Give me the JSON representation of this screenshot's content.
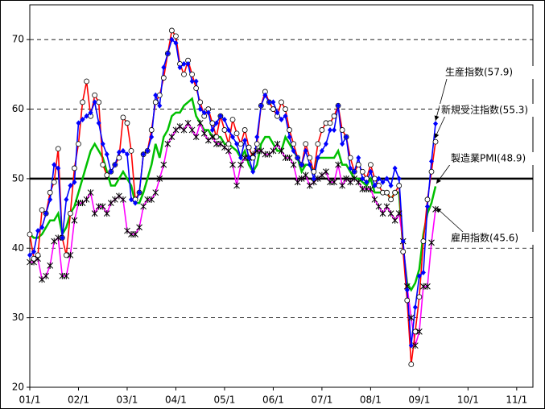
{
  "chart_data": {
    "type": "line",
    "x": [
      0,
      1,
      2,
      3,
      4,
      5,
      6,
      7,
      8,
      9,
      10,
      11,
      12,
      13,
      14,
      15,
      16,
      17,
      18,
      19,
      20,
      21,
      22,
      23,
      24,
      25,
      26,
      27,
      28,
      29,
      30,
      31,
      32,
      33,
      34,
      35,
      36,
      37,
      38,
      39,
      40,
      41,
      42,
      43,
      44,
      45,
      46,
      47,
      48,
      49,
      50,
      51,
      52,
      53,
      54,
      55,
      56,
      57,
      58,
      59,
      60,
      61,
      62,
      63,
      64,
      65,
      66,
      67,
      68,
      69,
      70,
      71,
      72,
      73,
      74,
      75,
      76,
      77,
      78,
      79,
      80,
      81,
      82,
      83,
      84,
      85,
      86,
      87,
      88,
      89,
      90,
      91,
      92,
      93,
      94,
      95,
      96,
      97,
      98,
      99,
      100
    ],
    "xlim": [
      0,
      124
    ],
    "xticks": [
      {
        "value": 0,
        "label": "01/1"
      },
      {
        "value": 12,
        "label": "02/1"
      },
      {
        "value": 24,
        "label": "03/1"
      },
      {
        "value": 36,
        "label": "04/1"
      },
      {
        "value": 48,
        "label": "05/1"
      },
      {
        "value": 60,
        "label": "06/1"
      },
      {
        "value": 72,
        "label": "07/1"
      },
      {
        "value": 84,
        "label": "08/1"
      },
      {
        "value": 96,
        "label": "09/1"
      },
      {
        "value": 108,
        "label": "10/1"
      },
      {
        "value": 120,
        "label": "11/1"
      }
    ],
    "ylim": [
      20,
      75
    ],
    "yticks": [
      20,
      30,
      40,
      50,
      60,
      70
    ],
    "grid": true,
    "reference_line": 50,
    "series": [
      {
        "name": "新規受注指数(55.3)",
        "color": "#ff0000",
        "marker": "circle",
        "values": [
          42,
          38.5,
          39,
          45.5,
          45,
          48,
          49.5,
          54.3,
          41.5,
          39,
          45,
          51.5,
          55,
          61,
          64,
          59,
          62,
          61,
          52,
          50.5,
          51,
          52,
          53,
          58.8,
          58,
          54,
          47,
          48,
          53.5,
          54,
          57,
          61,
          62,
          64.5,
          68,
          71.3,
          70.5,
          66.5,
          65,
          67,
          65,
          63,
          61,
          59,
          60,
          58,
          56,
          59,
          57,
          55,
          58.5,
          56.5,
          55,
          57,
          54.5,
          53,
          55,
          60.5,
          62.5,
          61,
          60,
          59,
          61,
          60,
          57,
          55,
          53,
          52,
          55,
          53,
          51,
          55,
          57,
          58,
          58,
          59,
          60.5,
          57,
          56,
          53,
          51,
          52,
          51,
          50,
          52,
          50,
          49,
          48,
          48,
          47,
          48,
          49,
          39.5,
          32.5,
          23.3,
          28,
          33,
          41,
          47,
          51,
          55.3
        ]
      },
      {
        "name": "生産指数(57.9)",
        "color": "#0000ff",
        "marker": "diamond",
        "values": [
          39,
          39.5,
          42.5,
          43,
          45,
          47,
          52,
          51.5,
          41.5,
          47,
          49,
          49.5,
          58,
          58.5,
          59,
          59.5,
          61,
          58,
          55,
          53.5,
          51,
          52,
          53.8,
          54,
          53.5,
          47,
          46.5,
          48,
          53.5,
          54,
          56,
          62,
          60.5,
          66,
          68,
          70,
          69.5,
          66,
          66.5,
          66.5,
          64,
          64,
          60,
          59.5,
          59.5,
          57,
          58,
          59,
          58.5,
          57,
          56,
          55,
          53,
          55.5,
          53,
          51,
          56,
          60.5,
          62,
          61,
          61,
          59.5,
          58.5,
          59,
          56,
          54,
          53,
          52,
          54,
          52,
          50,
          53,
          54,
          55,
          57,
          57,
          60.5,
          55,
          56,
          51.5,
          51,
          53,
          50,
          49.5,
          51,
          49,
          50,
          49.5,
          50,
          49,
          51.5,
          50,
          41,
          34,
          26,
          31.5,
          36,
          36.5,
          46,
          52.5,
          57.9
        ]
      },
      {
        "name": "製造業PMI(48.9)",
        "color": "#00c000",
        "marker": "none",
        "values": [
          42,
          41.5,
          41.5,
          42,
          43,
          44,
          44,
          45,
          42,
          43,
          45,
          46,
          48,
          50,
          52,
          54,
          55,
          54,
          53,
          51,
          49,
          49,
          50,
          51,
          50,
          49,
          46.5,
          46.5,
          48,
          50,
          52,
          55,
          53,
          56,
          57,
          59,
          59.5,
          59.5,
          60.5,
          61,
          61.5,
          59,
          58,
          57,
          57,
          56,
          56,
          56,
          55,
          55,
          54.5,
          54,
          53,
          54,
          52,
          51,
          52,
          55,
          56,
          56,
          55,
          54,
          54,
          56,
          55,
          54,
          53,
          51,
          52,
          52,
          51,
          53,
          53,
          53,
          53,
          53,
          54,
          52,
          52,
          51,
          50,
          50,
          49.5,
          49,
          50,
          48,
          48,
          48,
          48,
          47,
          48,
          48,
          40,
          35,
          34,
          35,
          37,
          42,
          45,
          46.5,
          48.9
        ]
      },
      {
        "name": "雇用指数(45.6)",
        "color": "#ff00ff",
        "marker": "asterisk",
        "values": [
          38,
          38,
          38.5,
          35.5,
          36,
          37.5,
          41,
          41.5,
          36,
          36,
          39,
          44,
          46.5,
          46.5,
          47,
          48,
          45,
          46,
          46,
          45,
          46.5,
          47,
          47.5,
          47,
          42.5,
          42,
          42,
          43,
          46,
          47,
          47,
          48,
          50,
          52,
          55,
          56,
          57,
          57.5,
          57,
          58,
          57,
          56,
          58,
          56.5,
          55.5,
          56,
          55,
          55,
          54.5,
          54,
          52,
          49,
          52,
          53,
          53,
          53.5,
          54,
          54,
          53.5,
          53.5,
          54,
          55,
          54,
          53,
          53,
          52,
          49.5,
          50,
          50.5,
          49,
          49.5,
          50,
          50.5,
          51,
          49.5,
          49.5,
          52,
          49,
          50,
          49.5,
          50,
          49.5,
          48.5,
          48.5,
          48.5,
          47,
          46,
          45,
          46,
          45,
          44,
          45,
          41,
          34.5,
          30,
          26,
          28,
          34.5,
          34.5,
          40.8,
          45.6
        ]
      }
    ]
  }
}
